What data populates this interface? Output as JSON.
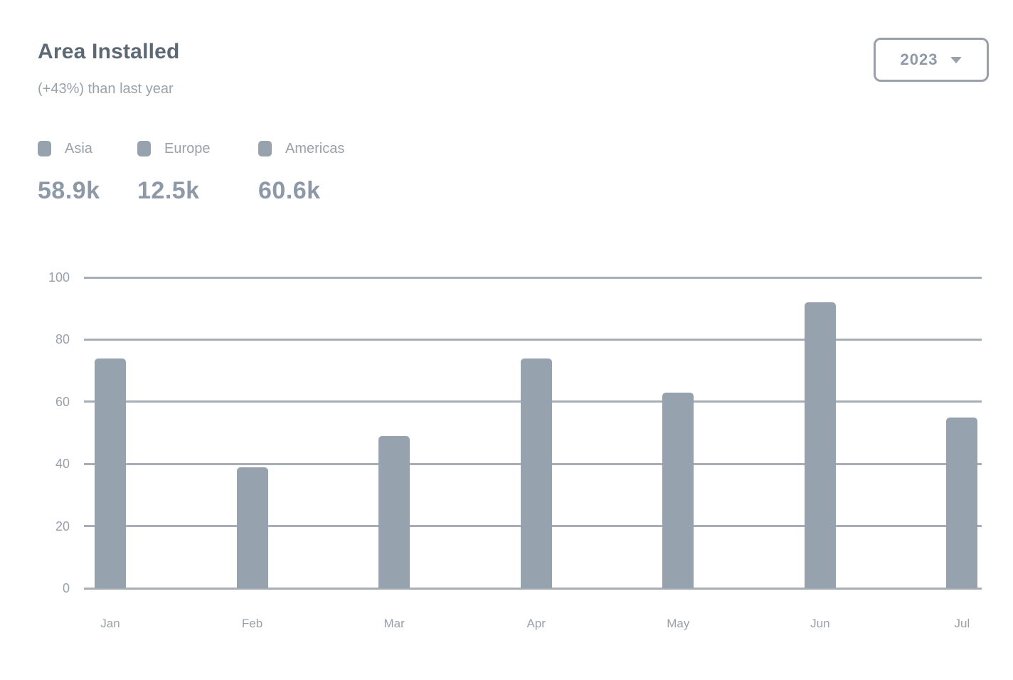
{
  "header": {
    "title": "Area Installed",
    "subtitle": "(+43%) than last year",
    "year_selector": {
      "value": "2023",
      "icon": "chevron-down-icon"
    }
  },
  "legend": {
    "items": [
      {
        "label": "Asia",
        "value": "58.9k",
        "marker_icon": "asia-legend-marker-icon"
      },
      {
        "label": "Europe",
        "value": "12.5k",
        "marker_icon": "europe-legend-marker-icon"
      },
      {
        "label": "Americas",
        "value": "60.6k",
        "marker_icon": "americas-legend-marker-icon"
      }
    ]
  },
  "chart_data": {
    "type": "bar",
    "title": "Area Installed",
    "categories": [
      "Jan",
      "Feb",
      "Mar",
      "Apr",
      "May",
      "Jun",
      "Jul"
    ],
    "values": [
      74,
      39,
      49,
      74,
      63,
      92,
      55
    ],
    "xlabel": "",
    "ylabel": "",
    "ylim": [
      0,
      100
    ],
    "yticks": [
      0,
      20,
      40,
      60,
      80,
      100
    ],
    "grid": true,
    "legend_position": "top-left",
    "bar_color": "#96a2ae"
  },
  "colors": {
    "bar": "#96a2ae",
    "grid": "#a7aeb5",
    "title_text": "#5c6974",
    "muted_text": "#99a2ab",
    "value_text": "#8d99a7",
    "axis_text": "#98a1aa",
    "select_border": "#99a0a8",
    "background": "#ffffff"
  }
}
